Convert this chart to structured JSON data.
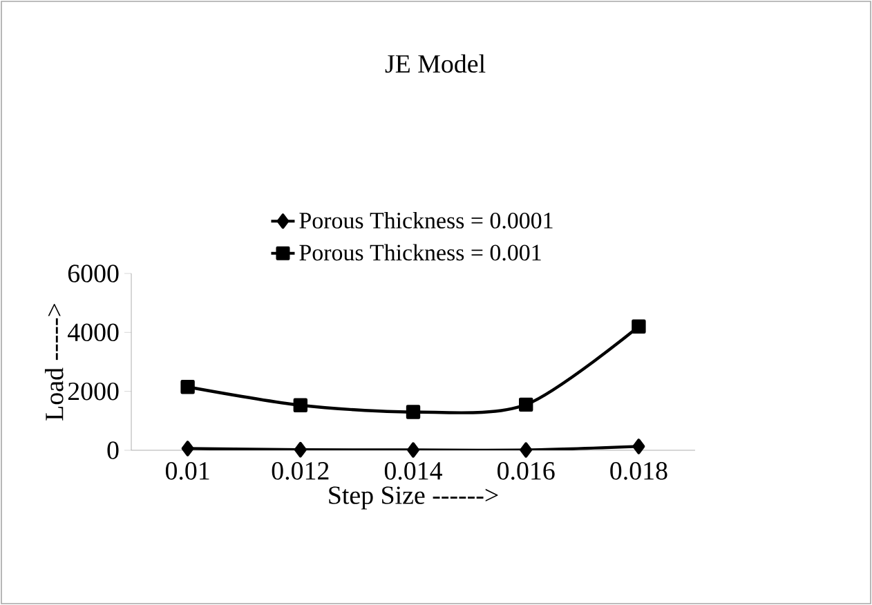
{
  "chart_data": {
    "type": "line",
    "title": "JE Model",
    "xlabel": "Step Size ------>",
    "ylabel": "Load ----->",
    "categories": [
      "0.01",
      "0.012",
      "0.014",
      "0.016",
      "0.018"
    ],
    "series": [
      {
        "name": "Porous Thickness = 0.0001",
        "color": "#000000",
        "marker": "diamond",
        "values": [
          60,
          20,
          10,
          10,
          130
        ]
      },
      {
        "name": "Porous Thickness = 0.001",
        "color": "#000000",
        "marker": "square",
        "values": [
          2150,
          1530,
          1300,
          1550,
          4200
        ]
      }
    ],
    "ylim": [
      0,
      6000
    ],
    "yticks": [
      0,
      2000,
      4000,
      6000
    ],
    "grid": false,
    "legend": "top",
    "line_style": "solid"
  }
}
